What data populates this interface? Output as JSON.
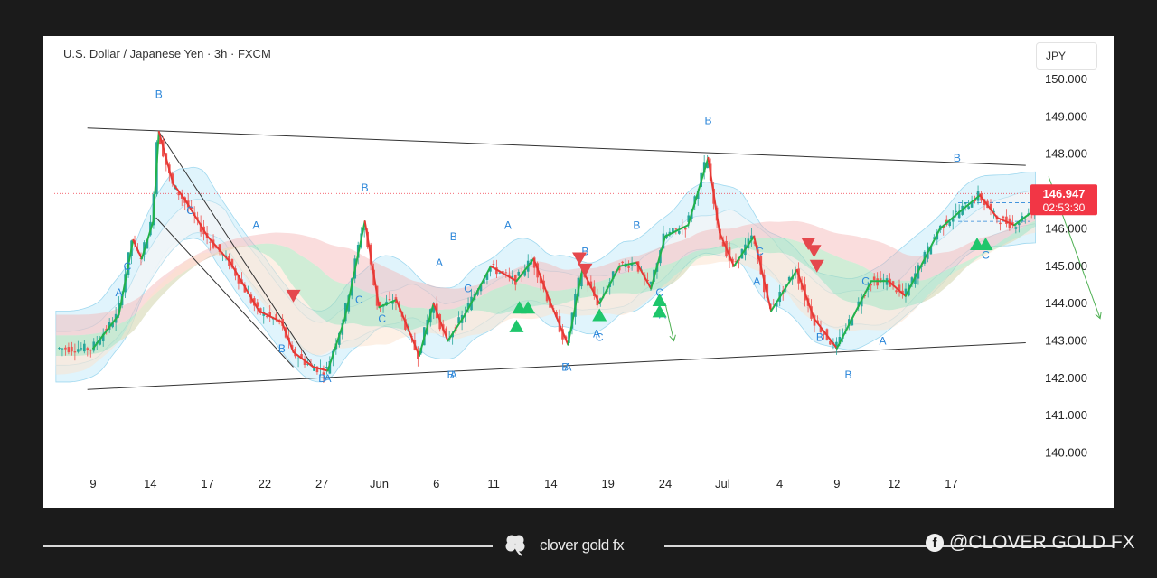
{
  "chart_data": {
    "type": "candlestick",
    "title": "U.S. Dollar / Japanese Yen · 3h · FXCM",
    "currency": "JPY",
    "ylim": [
      139.5,
      151.0
    ],
    "y_ticks": [
      "150.000",
      "149.000",
      "148.000",
      "147.000",
      "146.000",
      "145.000",
      "144.000",
      "143.000",
      "142.000",
      "141.000",
      "140.000"
    ],
    "y_tick_values": [
      150,
      149,
      148,
      147,
      146,
      145,
      144,
      143,
      142,
      141,
      140
    ],
    "x_ticks": [
      "9",
      "14",
      "17",
      "22",
      "27",
      "Jun",
      "6",
      "11",
      "14",
      "19",
      "24",
      "Jul",
      "4",
      "9",
      "12",
      "17"
    ],
    "x_tick_index": [
      0,
      1,
      2,
      3,
      4,
      5,
      6,
      7,
      8,
      9,
      10,
      11,
      12,
      13,
      14,
      15
    ],
    "last_price": "146.947",
    "countdown": "02:53:30",
    "last_price_value": 146.947,
    "price_path": [
      [
        0,
        142.8
      ],
      [
        0.45,
        143.7
      ],
      [
        0.7,
        145.7
      ],
      [
        0.85,
        145.2
      ],
      [
        1.05,
        146.2
      ],
      [
        1.15,
        148.6
      ],
      [
        1.4,
        147.2
      ],
      [
        1.6,
        146.8
      ],
      [
        2.0,
        145.8
      ],
      [
        2.4,
        145.1
      ],
      [
        2.9,
        143.8
      ],
      [
        3.3,
        143.5
      ],
      [
        3.5,
        142.7
      ],
      [
        3.85,
        142.3
      ],
      [
        4.1,
        142.2
      ],
      [
        4.4,
        143.6
      ],
      [
        4.75,
        146.2
      ],
      [
        5.0,
        143.9
      ],
      [
        5.3,
        144.1
      ],
      [
        5.7,
        142.6
      ],
      [
        5.95,
        144.0
      ],
      [
        6.2,
        143.0
      ],
      [
        6.5,
        143.7
      ],
      [
        6.95,
        145.0
      ],
      [
        7.4,
        144.6
      ],
      [
        7.7,
        145.2
      ],
      [
        8.0,
        144.0
      ],
      [
        8.3,
        142.9
      ],
      [
        8.55,
        144.9
      ],
      [
        8.85,
        144.0
      ],
      [
        9.2,
        145.0
      ],
      [
        9.5,
        145.1
      ],
      [
        9.75,
        144.4
      ],
      [
        10.0,
        145.8
      ],
      [
        10.4,
        146.1
      ],
      [
        10.75,
        147.9
      ],
      [
        10.95,
        145.9
      ],
      [
        11.2,
        145.0
      ],
      [
        11.55,
        145.8
      ],
      [
        11.85,
        143.8
      ],
      [
        12.3,
        144.9
      ],
      [
        12.6,
        143.6
      ],
      [
        13.0,
        142.8
      ],
      [
        13.3,
        143.7
      ],
      [
        13.6,
        144.6
      ],
      [
        13.9,
        144.6
      ],
      [
        14.2,
        144.2
      ],
      [
        14.5,
        145.1
      ],
      [
        14.8,
        146.0
      ],
      [
        15.1,
        146.4
      ],
      [
        15.5,
        146.9
      ],
      [
        15.8,
        146.3
      ],
      [
        16.1,
        146.1
      ],
      [
        16.45,
        146.5
      ],
      [
        16.5,
        146.95
      ]
    ],
    "trendlines": [
      {
        "name": "upper-channel",
        "from": [
          -0.1,
          148.7
        ],
        "to": [
          16.3,
          147.7
        ]
      },
      {
        "name": "lower-channel",
        "from": [
          -0.1,
          141.7
        ],
        "to": [
          16.3,
          142.95
        ]
      },
      {
        "name": "wedge-outer",
        "from": [
          1.15,
          148.6
        ],
        "to": [
          3.85,
          142.3
        ]
      },
      {
        "name": "wedge-inner",
        "from": [
          1.1,
          146.3
        ],
        "to": [
          3.5,
          142.3
        ]
      }
    ],
    "markers": [
      {
        "label": "B",
        "i": 1.15,
        "v": 149.5
      },
      {
        "label": "B",
        "i": 4.75,
        "v": 147.0
      },
      {
        "label": "B",
        "i": 10.75,
        "v": 148.8
      },
      {
        "label": "B",
        "i": 15.1,
        "v": 147.8
      },
      {
        "label": "B",
        "i": 6.3,
        "v": 145.7
      },
      {
        "label": "B",
        "i": 9.5,
        "v": 146.0
      },
      {
        "label": "B",
        "i": 3.3,
        "v": 142.7
      },
      {
        "label": "B",
        "i": 12.7,
        "v": 143.0
      },
      {
        "label": "B",
        "i": 13.2,
        "v": 142.0
      },
      {
        "label": "A",
        "i": 0.45,
        "v": 144.2
      },
      {
        "label": "A",
        "i": 2.85,
        "v": 146.0
      },
      {
        "label": "A",
        "i": 6.05,
        "v": 145.0
      },
      {
        "label": "A",
        "i": 7.25,
        "v": 146.0
      },
      {
        "label": "A",
        "i": 11.6,
        "v": 144.5
      },
      {
        "label": "A",
        "i": 13.8,
        "v": 142.9
      },
      {
        "label": "A",
        "i": 8.8,
        "v": 143.1
      },
      {
        "label": "A",
        "i": 9.95,
        "v": 143.6
      },
      {
        "label": "C",
        "i": 0.6,
        "v": 144.9
      },
      {
        "label": "C",
        "i": 1.7,
        "v": 146.4
      },
      {
        "label": "C",
        "i": 4.65,
        "v": 144.0
      },
      {
        "label": "C",
        "i": 5.05,
        "v": 143.5
      },
      {
        "label": "C",
        "i": 6.55,
        "v": 144.3
      },
      {
        "label": "C",
        "i": 9.9,
        "v": 144.2
      },
      {
        "label": "C",
        "i": 11.65,
        "v": 145.3
      },
      {
        "label": "C",
        "i": 13.5,
        "v": 144.5
      },
      {
        "label": "C",
        "i": 15.6,
        "v": 145.2
      },
      {
        "label": "B",
        "i": 8.6,
        "v": 145.3
      },
      {
        "label": "C",
        "i": 8.85,
        "v": 143.0
      },
      {
        "label": "B",
        "i": 4.0,
        "v": 141.9
      },
      {
        "label": "A",
        "i": 4.1,
        "v": 141.9
      },
      {
        "label": "B",
        "i": 6.25,
        "v": 142.0
      },
      {
        "label": "A",
        "i": 6.3,
        "v": 142.0
      },
      {
        "label": "B",
        "i": 8.25,
        "v": 142.2
      },
      {
        "label": "A",
        "i": 8.3,
        "v": 142.2
      }
    ],
    "signals": [
      {
        "type": "sell",
        "i": 3.5,
        "v": 144.2
      },
      {
        "type": "sell",
        "i": 8.5,
        "v": 145.2
      },
      {
        "type": "sell",
        "i": 8.6,
        "v": 144.9
      },
      {
        "type": "sell",
        "i": 12.5,
        "v": 145.6
      },
      {
        "type": "sell",
        "i": 12.6,
        "v": 145.4
      },
      {
        "type": "sell",
        "i": 12.65,
        "v": 145.0
      },
      {
        "type": "buy",
        "i": 7.45,
        "v": 143.9
      },
      {
        "type": "buy",
        "i": 7.6,
        "v": 143.9
      },
      {
        "type": "buy",
        "i": 7.4,
        "v": 143.4
      },
      {
        "type": "buy",
        "i": 8.85,
        "v": 143.7
      },
      {
        "type": "buy",
        "i": 9.9,
        "v": 144.1
      },
      {
        "type": "buy",
        "i": 9.9,
        "v": 143.8
      },
      {
        "type": "buy",
        "i": 15.45,
        "v": 145.6
      },
      {
        "type": "buy",
        "i": 15.6,
        "v": 145.6
      }
    ],
    "projections": [
      {
        "name": "forecast-long",
        "from": [
          16.7,
          147.4
        ],
        "to": [
          17.6,
          143.6
        ]
      },
      {
        "name": "forecast-short",
        "from": [
          10.0,
          144.0
        ],
        "to": [
          10.15,
          143.0
        ]
      }
    ]
  },
  "footer": {
    "brand": "clover gold fx",
    "social": "@CLOVER GOLD FX"
  },
  "colors": {
    "up": "#26a69a",
    "down": "#ef5350",
    "green_path": "#22b24c",
    "red_path": "#e53935",
    "label_blue": "#2b86d9",
    "price_badge": "#f23645"
  }
}
